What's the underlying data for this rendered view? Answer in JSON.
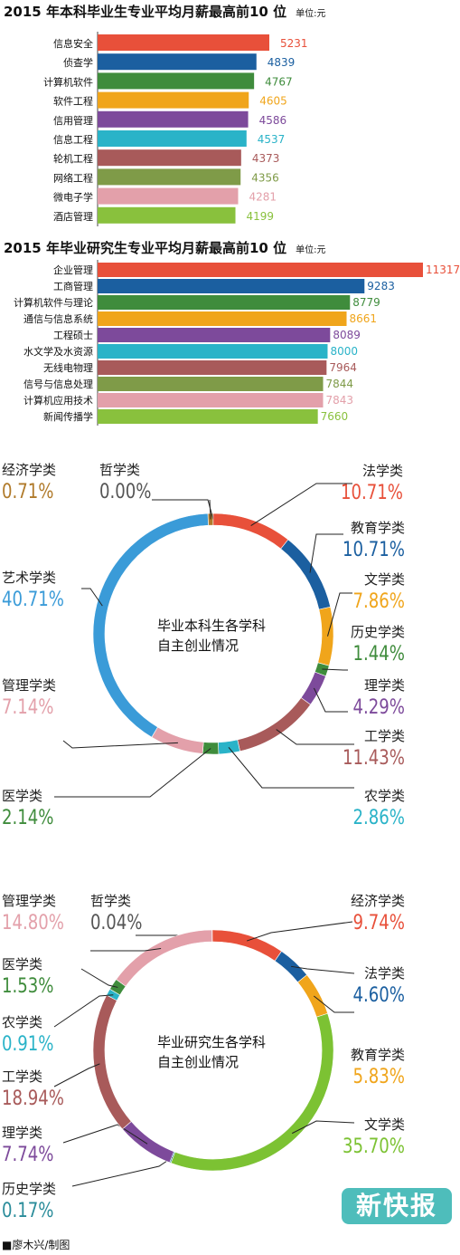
{
  "chart_data": [
    {
      "type": "bar",
      "title": "2015 年本科毕业生专业平均月薪最高前10 位",
      "unit": "单位:元",
      "categories": [
        "信息安全",
        "侦查学",
        "计算机软件",
        "软件工程",
        "信用管理",
        "信息工程",
        "轮机工程",
        "网络工程",
        "微电子学",
        "酒店管理"
      ],
      "values": [
        5231,
        4839,
        4767,
        4605,
        4586,
        4537,
        4373,
        4356,
        4281,
        4199
      ],
      "colors": [
        "#e8503a",
        "#1b5fa0",
        "#3f8c3c",
        "#f0a51b",
        "#7d4a9b",
        "#2ab3c8",
        "#a85a5a",
        "#7f9b48",
        "#e3a0aa",
        "#89c13d"
      ]
    },
    {
      "type": "bar",
      "title": "2015 年毕业研究生专业平均月薪最高前10 位",
      "unit": "单位:元",
      "categories": [
        "企业管理",
        "工商管理",
        "计算机软件与理论",
        "通信与信息系统",
        "工程硕士",
        "水文学及水资源",
        "无线电物理",
        "信号与信息处理",
        "计算机应用技术",
        "新闻传播学"
      ],
      "values": [
        11317,
        9283,
        8779,
        8661,
        8089,
        8000,
        7964,
        7844,
        7843,
        7660
      ],
      "colors": [
        "#e8503a",
        "#1b5fa0",
        "#3f8c3c",
        "#f0a51b",
        "#7d4a9b",
        "#2ab3c8",
        "#a85a5a",
        "#7f9b48",
        "#e3a0aa",
        "#89c13d"
      ]
    },
    {
      "type": "pie",
      "title": "毕业本科生各学科自主创业情况",
      "center_lines": [
        "毕业本科生各学科",
        "自主创业情况"
      ],
      "slices": [
        {
          "label": "经济学类",
          "value": 0.71,
          "text": "0.71%",
          "color": "#b07a2a"
        },
        {
          "label": "哲学类",
          "value": 0.0,
          "text": "0.00%",
          "color": "#555555"
        },
        {
          "label": "法学类",
          "value": 10.71,
          "text": "10.71%",
          "color": "#e8503a"
        },
        {
          "label": "教育学类",
          "value": 10.71,
          "text": "10.71%",
          "color": "#1b5fa0"
        },
        {
          "label": "文学类",
          "value": 7.86,
          "text": "7.86%",
          "color": "#f0a51b"
        },
        {
          "label": "历史学类",
          "value": 1.44,
          "text": "1.44%",
          "color": "#3f8c3c"
        },
        {
          "label": "理学类",
          "value": 4.29,
          "text": "4.29%",
          "color": "#7d4a9b"
        },
        {
          "label": "工学类",
          "value": 11.43,
          "text": "11.43%",
          "color": "#a85a5a"
        },
        {
          "label": "农学类",
          "value": 2.86,
          "text": "2.86%",
          "color": "#2ab3c8"
        },
        {
          "label": "医学类",
          "value": 2.14,
          "text": "2.14%",
          "color": "#3f8c3c"
        },
        {
          "label": "管理学类",
          "value": 7.14,
          "text": "7.14%",
          "color": "#e3a0aa"
        },
        {
          "label": "艺术学类",
          "value": 40.71,
          "text": "40.71%",
          "color": "#3a9bd8"
        }
      ]
    },
    {
      "type": "pie",
      "title": "毕业研究生各学科自主创业情况",
      "center_lines": [
        "毕业研究生各学科",
        "自主创业情况"
      ],
      "slices": [
        {
          "label": "哲学类",
          "value": 0.04,
          "text": "0.04%",
          "color": "#555555"
        },
        {
          "label": "经济学类",
          "value": 9.74,
          "text": "9.74%",
          "color": "#e8503a"
        },
        {
          "label": "法学类",
          "value": 4.6,
          "text": "4.60%",
          "color": "#1b5fa0"
        },
        {
          "label": "教育学类",
          "value": 5.83,
          "text": "5.83%",
          "color": "#f0a51b"
        },
        {
          "label": "文学类",
          "value": 35.7,
          "text": "35.70%",
          "color": "#7cc233"
        },
        {
          "label": "历史学类",
          "value": 0.17,
          "text": "0.17%",
          "color": "#2a8c9a"
        },
        {
          "label": "理学类",
          "value": 7.74,
          "text": "7.74%",
          "color": "#7d4a9b"
        },
        {
          "label": "工学类",
          "value": 18.94,
          "text": "18.94%",
          "color": "#a85a5a"
        },
        {
          "label": "农学类",
          "value": 0.91,
          "text": "0.91%",
          "color": "#2ab3c8"
        },
        {
          "label": "医学类",
          "value": 1.53,
          "text": "1.53%",
          "color": "#3f8c3c"
        },
        {
          "label": "管理学类",
          "value": 14.8,
          "text": "14.80%",
          "color": "#e3a0aa"
        }
      ]
    }
  ],
  "logo_text": "新快报",
  "credit": "■廖木兴/制图"
}
